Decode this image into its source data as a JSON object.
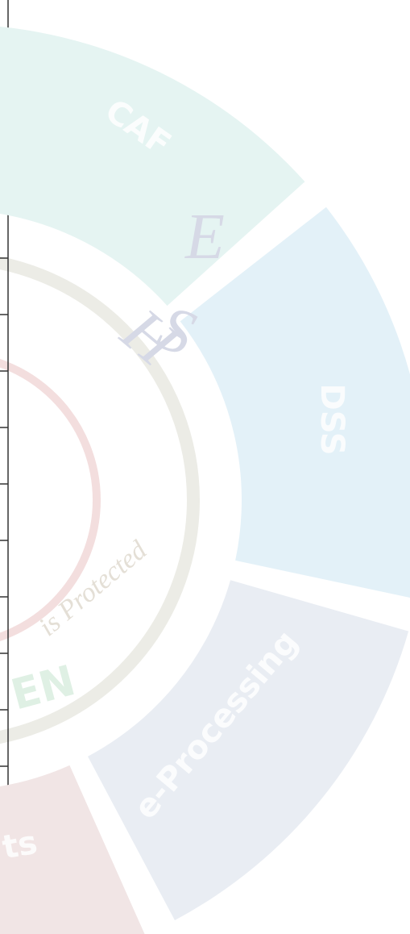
{
  "segments": [
    {
      "label": "CAF"
    },
    {
      "label": "DSS"
    },
    {
      "label": "e-Processing"
    },
    {
      "label": "ts"
    }
  ],
  "logo": {
    "letters": [
      "E",
      "S",
      "H"
    ],
    "motto": "is Protected",
    "brand": "EN"
  }
}
